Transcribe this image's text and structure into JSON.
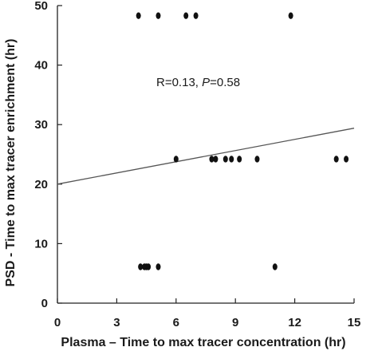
{
  "chart_data": {
    "type": "scatter",
    "xlabel": "Plasma – Time to max tracer concentration (hr)",
    "ylabel": "PSD - Time to max tracer enrichment (hr)",
    "xlim": [
      0,
      15
    ],
    "ylim": [
      0,
      50
    ],
    "xticks": [
      0,
      3,
      6,
      9,
      12,
      15
    ],
    "yticks": [
      0,
      10,
      20,
      30,
      40,
      50
    ],
    "grid": false,
    "annotation": {
      "r_part": "R=0.13, ",
      "p_letter": "P",
      "p_part": "=0.58"
    },
    "points": [
      {
        "x": 4.1,
        "y": 48.3
      },
      {
        "x": 5.1,
        "y": 48.3
      },
      {
        "x": 6.5,
        "y": 48.3
      },
      {
        "x": 7.0,
        "y": 48.3
      },
      {
        "x": 11.8,
        "y": 48.3
      },
      {
        "x": 6.0,
        "y": 24.2
      },
      {
        "x": 7.8,
        "y": 24.2
      },
      {
        "x": 8.0,
        "y": 24.2
      },
      {
        "x": 8.5,
        "y": 24.2
      },
      {
        "x": 8.8,
        "y": 24.2
      },
      {
        "x": 9.2,
        "y": 24.2
      },
      {
        "x": 10.1,
        "y": 24.2
      },
      {
        "x": 14.1,
        "y": 24.2
      },
      {
        "x": 14.6,
        "y": 24.2
      },
      {
        "x": 4.2,
        "y": 6.1
      },
      {
        "x": 4.4,
        "y": 6.1
      },
      {
        "x": 4.5,
        "y": 6.1
      },
      {
        "x": 4.6,
        "y": 6.1
      },
      {
        "x": 5.1,
        "y": 6.1
      },
      {
        "x": 11.0,
        "y": 6.1
      }
    ],
    "trendline": {
      "x1": 0,
      "y1": 20.0,
      "x2": 15,
      "y2": 29.4
    },
    "colors": {
      "marker": "#111111",
      "line": "#555555",
      "axis": "#222222"
    }
  }
}
